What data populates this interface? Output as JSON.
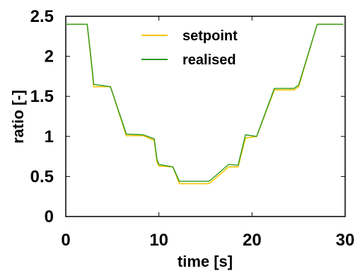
{
  "chart_data": {
    "type": "line",
    "title": "",
    "xlabel": "time [s]",
    "ylabel": "ratio [-]",
    "xlim": [
      0,
      30
    ],
    "ylim": [
      0,
      2.5
    ],
    "x_ticks": [
      "0",
      "10",
      "20",
      "30"
    ],
    "x_tick_values": [
      0,
      10,
      20,
      30
    ],
    "y_ticks": [
      "0",
      "0.5",
      "1",
      "1.5",
      "2",
      "2.5"
    ],
    "y_tick_values": [
      0,
      0.5,
      1,
      1.5,
      2,
      2.5
    ],
    "grid": false,
    "legend_position": "top-center",
    "series": [
      {
        "name": "setpoint",
        "color": "#f5c400",
        "x": [
          0,
          2.3,
          2.8,
          3.0,
          4.8,
          6.5,
          8.3,
          9.5,
          9.8,
          10.0,
          11.5,
          12.2,
          14.8,
          15.3,
          15.5,
          17.5,
          18.5,
          19.3,
          20.5,
          22.4,
          23.5,
          24.5,
          25.0,
          27.0,
          29.8
        ],
        "y": [
          2.4,
          2.4,
          1.85,
          1.62,
          1.62,
          1.01,
          1.01,
          0.95,
          0.68,
          0.63,
          0.62,
          0.41,
          0.41,
          0.41,
          0.42,
          0.62,
          0.62,
          0.98,
          1.0,
          1.58,
          1.58,
          1.58,
          1.62,
          2.4,
          2.4
        ]
      },
      {
        "name": "realised",
        "color": "#2a9a1e",
        "x": [
          0,
          2.3,
          2.8,
          3.0,
          4.8,
          6.5,
          8.3,
          9.5,
          9.8,
          10.0,
          11.5,
          12.2,
          14.8,
          15.3,
          15.5,
          17.5,
          18.5,
          19.3,
          20.5,
          22.4,
          23.5,
          24.5,
          25.0,
          27.0,
          29.8
        ],
        "y": [
          2.4,
          2.4,
          1.88,
          1.65,
          1.62,
          1.03,
          1.02,
          0.97,
          0.71,
          0.65,
          0.62,
          0.44,
          0.44,
          0.44,
          0.45,
          0.65,
          0.64,
          1.02,
          1.0,
          1.6,
          1.6,
          1.6,
          1.64,
          2.4,
          2.4
        ]
      }
    ]
  }
}
